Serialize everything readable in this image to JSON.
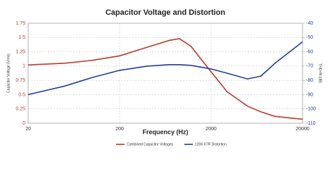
{
  "chart_data": {
    "type": "line",
    "title": "Capacitor Voltage and Distortion",
    "x_label": "Frequency (Hz)",
    "y_label": "Capacitor Voltage (Vrms)",
    "y2_label": "THD+N (dB)",
    "x_scale": "log",
    "grid": true,
    "x": [
      20,
      50,
      100,
      200,
      400,
      700,
      900,
      1200,
      2000,
      3000,
      5000,
      7000,
      10000,
      20000
    ],
    "xlim": [
      20,
      20000
    ],
    "xticks": [
      20,
      200,
      2000,
      20000
    ],
    "ylim": [
      0,
      1.75
    ],
    "yticks": [
      0,
      0.25,
      0.5,
      0.75,
      1,
      1.25,
      1.5,
      1.75
    ],
    "y2lim": [
      -110,
      -40
    ],
    "y2ticks": [
      -110,
      -100,
      -90,
      -80,
      -70,
      -60,
      -50,
      -40
    ],
    "series": [
      {
        "name": "Combined Capacitor Voltages",
        "color": "#c0392b",
        "values": [
          1.02,
          1.05,
          1.1,
          1.18,
          1.33,
          1.45,
          1.48,
          1.35,
          0.9,
          0.55,
          0.3,
          0.2,
          0.12,
          0.07
        ]
      },
      {
        "name": "1206 X7R Distortion",
        "color": "#1f3f9e",
        "axis": "y2",
        "values": [
          -90,
          -84,
          -78,
          -73,
          -70,
          -69,
          -69,
          -69.5,
          -72,
          -75,
          -79,
          -77,
          -68,
          -53
        ]
      }
    ]
  }
}
